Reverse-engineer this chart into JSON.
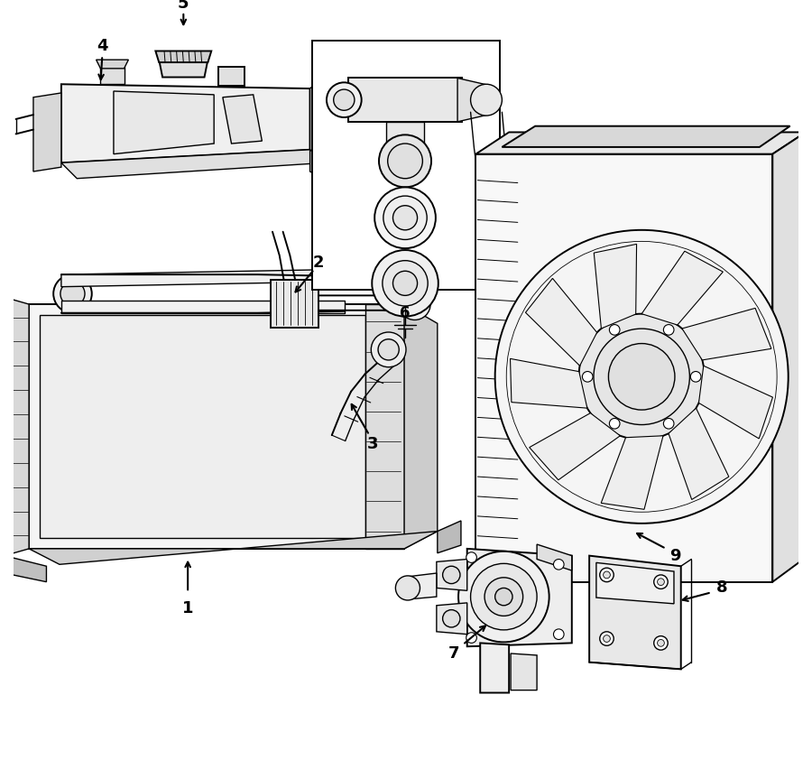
{
  "bg_color": "#ffffff",
  "lc": "#000000",
  "fig_width": 9.0,
  "fig_height": 8.42,
  "dpi": 100,
  "lw": 1.0,
  "lw2": 1.4
}
